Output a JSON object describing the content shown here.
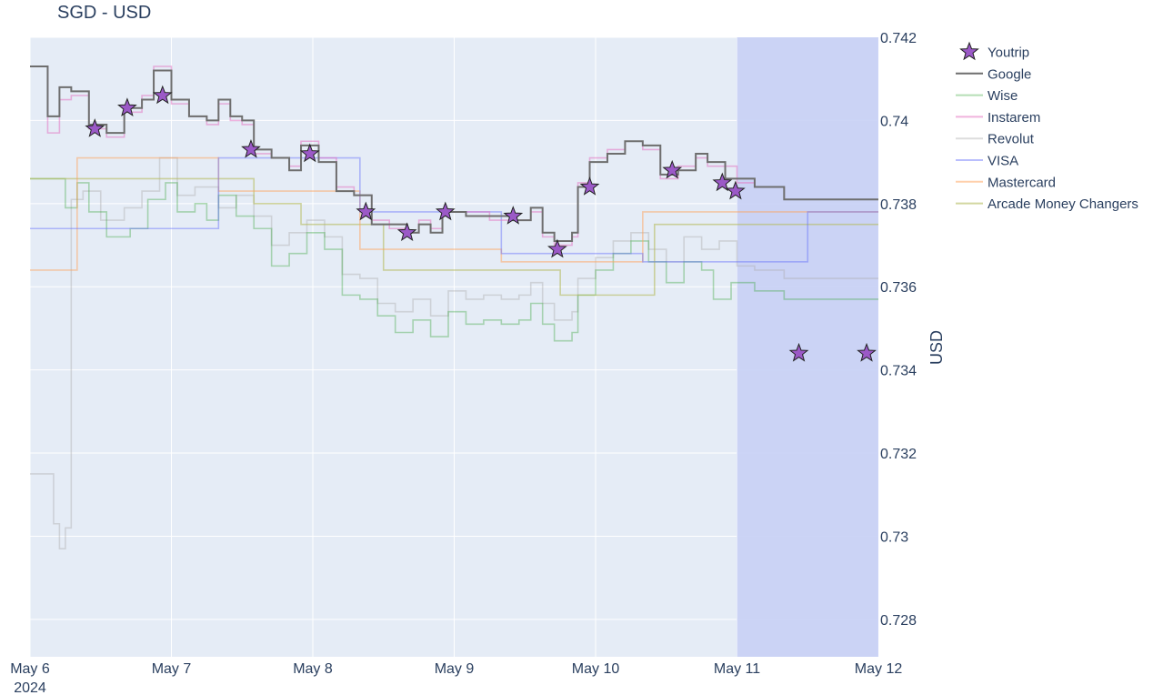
{
  "chart_data": {
    "type": "line",
    "title": "SGD - USD",
    "ylabel": "USD",
    "xlabel": "",
    "xlim": [
      "2024-05-06T00:00",
      "2024-05-12T00:00"
    ],
    "ylim": [
      0.7271,
      0.742
    ],
    "x_ticks": [
      "May 6",
      "May 7",
      "May 8",
      "May 9",
      "May 10",
      "May 11",
      "May 12"
    ],
    "x_tick_year": "2024",
    "y_ticks": [
      "0.728",
      "0.73",
      "0.732",
      "0.734",
      "0.736",
      "0.738",
      "0.74",
      "0.742"
    ],
    "grid": true,
    "legend_position": "right",
    "highlight_region": {
      "x": [
        "2024-05-11T00:00",
        "2024-05-12T00:00"
      ],
      "color": "#c8d0f5"
    },
    "series": [
      {
        "name": "Google",
        "mode": "step-line",
        "color": "#6e6e6e",
        "opacity": 1.0,
        "points": [
          [
            "2024-05-06T00:00",
            0.7413
          ],
          [
            "2024-05-06T03:00",
            0.7401
          ],
          [
            "2024-05-06T05:00",
            0.7408
          ],
          [
            "2024-05-06T07:00",
            0.7407
          ],
          [
            "2024-05-06T10:00",
            0.7399
          ],
          [
            "2024-05-06T13:00",
            0.7397
          ],
          [
            "2024-05-06T16:00",
            0.7403
          ],
          [
            "2024-05-06T19:00",
            0.7405
          ],
          [
            "2024-05-06T21:00",
            0.7412
          ],
          [
            "2024-05-07T00:00",
            0.7405
          ],
          [
            "2024-05-07T03:00",
            0.7401
          ],
          [
            "2024-05-07T06:00",
            0.74
          ],
          [
            "2024-05-07T08:00",
            0.7405
          ],
          [
            "2024-05-07T10:00",
            0.7401
          ],
          [
            "2024-05-07T12:00",
            0.74
          ],
          [
            "2024-05-07T14:00",
            0.7393
          ],
          [
            "2024-05-07T17:00",
            0.7391
          ],
          [
            "2024-05-07T20:00",
            0.7388
          ],
          [
            "2024-05-07T22:00",
            0.7394
          ],
          [
            "2024-05-08T01:00",
            0.739
          ],
          [
            "2024-05-08T04:00",
            0.7383
          ],
          [
            "2024-05-08T07:00",
            0.7382
          ],
          [
            "2024-05-08T10:00",
            0.7375
          ],
          [
            "2024-05-08T13:00",
            0.7375
          ],
          [
            "2024-05-08T16:00",
            0.7373
          ],
          [
            "2024-05-08T18:00",
            0.7375
          ],
          [
            "2024-05-08T20:00",
            0.7373
          ],
          [
            "2024-05-08T22:00",
            0.7378
          ],
          [
            "2024-05-09T02:00",
            0.7377
          ],
          [
            "2024-05-09T06:00",
            0.7377
          ],
          [
            "2024-05-09T10:00",
            0.7376
          ],
          [
            "2024-05-09T13:00",
            0.7379
          ],
          [
            "2024-05-09T15:00",
            0.7373
          ],
          [
            "2024-05-09T17:00",
            0.7371
          ],
          [
            "2024-05-09T20:00",
            0.7373
          ],
          [
            "2024-05-09T21:00",
            0.7384
          ],
          [
            "2024-05-09T23:00",
            0.739
          ],
          [
            "2024-05-10T02:00",
            0.7392
          ],
          [
            "2024-05-10T05:00",
            0.7395
          ],
          [
            "2024-05-10T08:00",
            0.7394
          ],
          [
            "2024-05-10T11:00",
            0.7387
          ],
          [
            "2024-05-10T14:00",
            0.7388
          ],
          [
            "2024-05-10T17:00",
            0.7392
          ],
          [
            "2024-05-10T19:00",
            0.739
          ],
          [
            "2024-05-10T22:00",
            0.7386
          ],
          [
            "2024-05-11T00:00",
            0.7386
          ],
          [
            "2024-05-11T03:00",
            0.7384
          ],
          [
            "2024-05-11T08:00",
            0.7381
          ],
          [
            "2024-05-12T00:00",
            0.7381
          ]
        ]
      },
      {
        "name": "Instarem",
        "mode": "step-line",
        "color": "#e377c2",
        "opacity": 0.55,
        "points": [
          [
            "2024-05-06T00:00",
            0.7413
          ],
          [
            "2024-05-06T03:00",
            0.7397
          ],
          [
            "2024-05-06T05:00",
            0.7405
          ],
          [
            "2024-05-06T07:00",
            0.7406
          ],
          [
            "2024-05-06T10:00",
            0.7398
          ],
          [
            "2024-05-06T13:00",
            0.7396
          ],
          [
            "2024-05-06T16:00",
            0.7402
          ],
          [
            "2024-05-06T19:00",
            0.7406
          ],
          [
            "2024-05-06T21:00",
            0.7413
          ],
          [
            "2024-05-07T00:00",
            0.7404
          ],
          [
            "2024-05-07T03:00",
            0.7401
          ],
          [
            "2024-05-07T06:00",
            0.7399
          ],
          [
            "2024-05-07T08:00",
            0.7404
          ],
          [
            "2024-05-07T10:00",
            0.74
          ],
          [
            "2024-05-07T12:00",
            0.7399
          ],
          [
            "2024-05-07T14:00",
            0.7392
          ],
          [
            "2024-05-07T17:00",
            0.7391
          ],
          [
            "2024-05-07T20:00",
            0.7389
          ],
          [
            "2024-05-07T22:00",
            0.7395
          ],
          [
            "2024-05-08T01:00",
            0.7391
          ],
          [
            "2024-05-08T04:00",
            0.7384
          ],
          [
            "2024-05-08T07:00",
            0.7382
          ],
          [
            "2024-05-08T10:00",
            0.7376
          ],
          [
            "2024-05-08T13:00",
            0.7374
          ],
          [
            "2024-05-08T16:00",
            0.7373
          ],
          [
            "2024-05-08T18:00",
            0.7376
          ],
          [
            "2024-05-08T20:00",
            0.7374
          ],
          [
            "2024-05-08T22:00",
            0.7378
          ],
          [
            "2024-05-09T02:00",
            0.7378
          ],
          [
            "2024-05-09T06:00",
            0.7376
          ],
          [
            "2024-05-09T10:00",
            0.7376
          ],
          [
            "2024-05-09T13:00",
            0.7378
          ],
          [
            "2024-05-09T15:00",
            0.7372
          ],
          [
            "2024-05-09T17:00",
            0.737
          ],
          [
            "2024-05-09T20:00",
            0.7372
          ],
          [
            "2024-05-09T21:00",
            0.7385
          ],
          [
            "2024-05-09T23:00",
            0.7391
          ],
          [
            "2024-05-10T02:00",
            0.7393
          ],
          [
            "2024-05-10T05:00",
            0.7395
          ],
          [
            "2024-05-10T08:00",
            0.7393
          ],
          [
            "2024-05-10T11:00",
            0.7386
          ],
          [
            "2024-05-10T14:00",
            0.7389
          ],
          [
            "2024-05-10T17:00",
            0.7391
          ],
          [
            "2024-05-10T19:00",
            0.7389
          ],
          [
            "2024-05-10T22:00",
            0.7389
          ],
          [
            "2024-05-11T00:00",
            0.7385
          ],
          [
            "2024-05-11T03:00",
            0.7384
          ],
          [
            "2024-05-11T08:00",
            0.7381
          ],
          [
            "2024-05-12T00:00",
            0.7381
          ]
        ]
      },
      {
        "name": "Wise",
        "mode": "step-line",
        "color": "#2ca02c",
        "opacity": 0.35,
        "points": [
          [
            "2024-05-06T00:00",
            0.7386
          ],
          [
            "2024-05-06T06:00",
            0.7379
          ],
          [
            "2024-05-06T08:00",
            0.7385
          ],
          [
            "2024-05-06T10:00",
            0.7378
          ],
          [
            "2024-05-06T13:00",
            0.7372
          ],
          [
            "2024-05-06T17:00",
            0.7374
          ],
          [
            "2024-05-06T20:00",
            0.7381
          ],
          [
            "2024-05-06T23:00",
            0.7385
          ],
          [
            "2024-05-07T01:00",
            0.7378
          ],
          [
            "2024-05-07T04:00",
            0.738
          ],
          [
            "2024-05-07T06:00",
            0.7376
          ],
          [
            "2024-05-07T08:00",
            0.7382
          ],
          [
            "2024-05-07T11:00",
            0.7377
          ],
          [
            "2024-05-07T14:00",
            0.7374
          ],
          [
            "2024-05-07T17:00",
            0.7365
          ],
          [
            "2024-05-07T20:00",
            0.7368
          ],
          [
            "2024-05-07T23:00",
            0.7373
          ],
          [
            "2024-05-08T02:00",
            0.7369
          ],
          [
            "2024-05-08T05:00",
            0.7358
          ],
          [
            "2024-05-08T08:00",
            0.7357
          ],
          [
            "2024-05-08T11:00",
            0.7353
          ],
          [
            "2024-05-08T14:00",
            0.7349
          ],
          [
            "2024-05-08T17:00",
            0.7352
          ],
          [
            "2024-05-08T20:00",
            0.7348
          ],
          [
            "2024-05-08T23:00",
            0.7354
          ],
          [
            "2024-05-09T02:00",
            0.7351
          ],
          [
            "2024-05-09T05:00",
            0.7352
          ],
          [
            "2024-05-09T08:00",
            0.7351
          ],
          [
            "2024-05-09T11:00",
            0.7352
          ],
          [
            "2024-05-09T13:00",
            0.7356
          ],
          [
            "2024-05-09T15:00",
            0.7351
          ],
          [
            "2024-05-09T17:00",
            0.7347
          ],
          [
            "2024-05-09T20:00",
            0.7349
          ],
          [
            "2024-05-09T21:00",
            0.7358
          ],
          [
            "2024-05-10T00:00",
            0.7364
          ],
          [
            "2024-05-10T03:00",
            0.7368
          ],
          [
            "2024-05-10T06:00",
            0.7371
          ],
          [
            "2024-05-10T09:00",
            0.7366
          ],
          [
            "2024-05-10T12:00",
            0.7361
          ],
          [
            "2024-05-10T15:00",
            0.7366
          ],
          [
            "2024-05-10T18:00",
            0.7364
          ],
          [
            "2024-05-10T20:00",
            0.7357
          ],
          [
            "2024-05-10T23:00",
            0.7361
          ],
          [
            "2024-05-11T03:00",
            0.7359
          ],
          [
            "2024-05-11T08:00",
            0.7357
          ],
          [
            "2024-05-12T00:00",
            0.7357
          ]
        ]
      },
      {
        "name": "Revolut",
        "mode": "step-line",
        "color": "#aaaaaa",
        "opacity": 0.4,
        "points": [
          [
            "2024-05-06T00:00",
            0.7315
          ],
          [
            "2024-05-06T04:00",
            0.7303
          ],
          [
            "2024-05-06T05:00",
            0.7297
          ],
          [
            "2024-05-06T06:00",
            0.7302
          ],
          [
            "2024-05-06T07:00",
            0.7381
          ],
          [
            "2024-05-06T09:00",
            0.7383
          ],
          [
            "2024-05-06T12:00",
            0.7376
          ],
          [
            "2024-05-06T16:00",
            0.7379
          ],
          [
            "2024-05-06T19:00",
            0.7383
          ],
          [
            "2024-05-06T22:00",
            0.7391
          ],
          [
            "2024-05-07T01:00",
            0.7382
          ],
          [
            "2024-05-07T04:00",
            0.7384
          ],
          [
            "2024-05-07T08:00",
            0.7379
          ],
          [
            "2024-05-07T11:00",
            0.7382
          ],
          [
            "2024-05-07T14:00",
            0.7377
          ],
          [
            "2024-05-07T17:00",
            0.737
          ],
          [
            "2024-05-07T20:00",
            0.7373
          ],
          [
            "2024-05-07T23:00",
            0.7376
          ],
          [
            "2024-05-08T02:00",
            0.7372
          ],
          [
            "2024-05-08T05:00",
            0.7363
          ],
          [
            "2024-05-08T08:00",
            0.7362
          ],
          [
            "2024-05-08T11:00",
            0.7356
          ],
          [
            "2024-05-08T14:00",
            0.7354
          ],
          [
            "2024-05-08T17:00",
            0.7357
          ],
          [
            "2024-05-08T20:00",
            0.7353
          ],
          [
            "2024-05-08T23:00",
            0.7359
          ],
          [
            "2024-05-09T02:00",
            0.7357
          ],
          [
            "2024-05-09T05:00",
            0.7358
          ],
          [
            "2024-05-09T08:00",
            0.7357
          ],
          [
            "2024-05-09T11:00",
            0.7358
          ],
          [
            "2024-05-09T13:00",
            0.7361
          ],
          [
            "2024-05-09T15:00",
            0.7356
          ],
          [
            "2024-05-09T17:00",
            0.7352
          ],
          [
            "2024-05-09T20:00",
            0.7354
          ],
          [
            "2024-05-09T21:00",
            0.7362
          ],
          [
            "2024-05-10T00:00",
            0.7367
          ],
          [
            "2024-05-10T03:00",
            0.7371
          ],
          [
            "2024-05-10T06:00",
            0.7373
          ],
          [
            "2024-05-10T09:00",
            0.7369
          ],
          [
            "2024-05-10T12:00",
            0.7366
          ],
          [
            "2024-05-10T15:00",
            0.7372
          ],
          [
            "2024-05-10T18:00",
            0.7369
          ],
          [
            "2024-05-10T21:00",
            0.7371
          ],
          [
            "2024-05-11T00:00",
            0.7365
          ],
          [
            "2024-05-11T03:00",
            0.7364
          ],
          [
            "2024-05-11T08:00",
            0.7362
          ],
          [
            "2024-05-12T00:00",
            0.7362
          ]
        ]
      },
      {
        "name": "VISA",
        "mode": "step-line",
        "color": "#636efa",
        "opacity": 0.45,
        "points": [
          [
            "2024-05-06T00:00",
            0.7374
          ],
          [
            "2024-05-07T08:00",
            0.7391
          ],
          [
            "2024-05-07T15:00",
            0.7391
          ],
          [
            "2024-05-08T08:00",
            0.7378
          ],
          [
            "2024-05-09T08:00",
            0.7368
          ],
          [
            "2024-05-10T08:00",
            0.7366
          ],
          [
            "2024-05-11T08:00",
            0.7366
          ],
          [
            "2024-05-11T12:00",
            0.7378
          ],
          [
            "2024-05-12T00:00",
            0.7378
          ]
        ]
      },
      {
        "name": "Mastercard",
        "mode": "step-line",
        "color": "#ffa15a",
        "opacity": 0.5,
        "points": [
          [
            "2024-05-06T00:00",
            0.7364
          ],
          [
            "2024-05-06T08:00",
            0.7391
          ],
          [
            "2024-05-07T08:00",
            0.7383
          ],
          [
            "2024-05-08T08:00",
            0.7369
          ],
          [
            "2024-05-09T08:00",
            0.7366
          ],
          [
            "2024-05-10T08:00",
            0.7378
          ],
          [
            "2024-05-12T00:00",
            0.7378
          ]
        ]
      },
      {
        "name": "Arcade Money Changers",
        "mode": "step-line",
        "color": "#b5bd61",
        "opacity": 0.6,
        "points": [
          [
            "2024-05-06T00:00",
            0.7386
          ],
          [
            "2024-05-07T14:00",
            0.738
          ],
          [
            "2024-05-07T22:00",
            0.7375
          ],
          [
            "2024-05-08T12:00",
            0.7364
          ],
          [
            "2024-05-09T18:00",
            0.7358
          ],
          [
            "2024-05-10T10:00",
            0.7375
          ],
          [
            "2024-05-12T00:00",
            0.7375
          ]
        ]
      },
      {
        "name": "Youtrip",
        "mode": "markers",
        "marker": "star",
        "color": "#9b59c7",
        "opacity": 1.0,
        "points": [
          [
            "2024-05-06T11:00",
            0.7398
          ],
          [
            "2024-05-06T16:30",
            0.7403
          ],
          [
            "2024-05-06T22:30",
            0.7406
          ],
          [
            "2024-05-07T13:30",
            0.7393
          ],
          [
            "2024-05-07T23:30",
            0.7392
          ],
          [
            "2024-05-08T09:00",
            0.7378
          ],
          [
            "2024-05-08T16:00",
            0.7373
          ],
          [
            "2024-05-08T22:30",
            0.7378
          ],
          [
            "2024-05-09T10:00",
            0.7377
          ],
          [
            "2024-05-09T17:30",
            0.7369
          ],
          [
            "2024-05-09T23:00",
            0.7384
          ],
          [
            "2024-05-10T13:00",
            0.7388
          ],
          [
            "2024-05-10T21:30",
            0.7385
          ],
          [
            "2024-05-10T23:45",
            0.7383
          ],
          [
            "2024-05-11T10:30",
            0.7344
          ],
          [
            "2024-05-11T22:00",
            0.7344
          ]
        ]
      }
    ],
    "legend_order": [
      "Youtrip",
      "Google",
      "Wise",
      "Instarem",
      "Revolut",
      "VISA",
      "Mastercard",
      "Arcade Money Changers"
    ]
  }
}
